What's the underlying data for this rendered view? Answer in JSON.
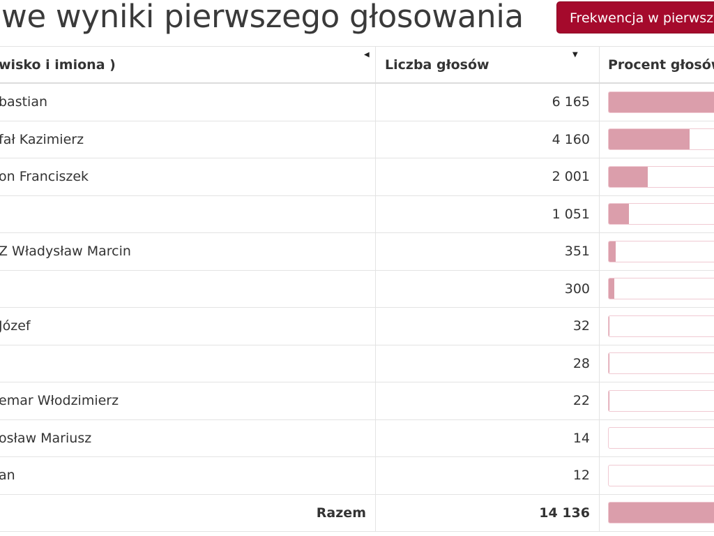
{
  "page": {
    "heading": "we wyniki pierwszego głosowania",
    "turnout_button": "Frekwencja w pierwszym"
  },
  "table": {
    "columns": {
      "name": "wisko i imiona )",
      "votes": "Liczba głosów",
      "percent": "Procent głosów"
    },
    "rows": [
      {
        "name": "bastian",
        "votes": "6 165",
        "share": 0.4361
      },
      {
        "name": "fał Kazimierz",
        "votes": "4 160",
        "share": 0.2943
      },
      {
        "name": "on Franciszek",
        "votes": "2 001",
        "share": 0.1416
      },
      {
        "name": "",
        "votes": "1 051",
        "share": 0.0744
      },
      {
        "name": "Z Władysław Marcin",
        "votes": "351",
        "share": 0.0248
      },
      {
        "name": "",
        "votes": "300",
        "share": 0.0212
      },
      {
        "name": " Józef",
        "votes": "32",
        "share": 0.0023
      },
      {
        "name": "",
        "votes": "28",
        "share": 0.002
      },
      {
        "name": "emar Włodzimierz",
        "votes": "22",
        "share": 0.0016
      },
      {
        "name": "osław Mariusz",
        "votes": "14",
        "share": 0.001
      },
      {
        "name": "an",
        "votes": "12",
        "share": 0.0008
      }
    ],
    "total": {
      "label": "Razem",
      "votes": "14 136",
      "share": 1.0
    }
  },
  "colors": {
    "button": "#a50a2c",
    "bar_fill": "#db9eab",
    "bar_border": "#f0c9d2"
  }
}
